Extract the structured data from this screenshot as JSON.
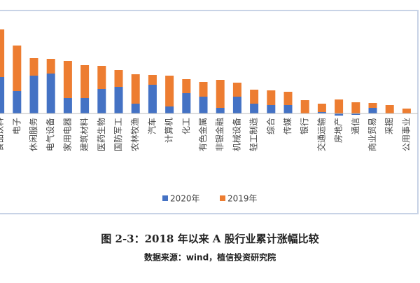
{
  "chart_data": {
    "type": "bar",
    "stacked": true,
    "categories": [
      "食品饮料",
      "电子",
      "休闲服务",
      "电气设备",
      "家用电器",
      "建筑材料",
      "医药生物",
      "国防军工",
      "农林牧渔",
      "汽车",
      "计算机",
      "化工",
      "有色金属",
      "非银金融",
      "机械设备",
      "轻工制造",
      "综合",
      "传媒",
      "银行",
      "交通运输",
      "房地产",
      "通信",
      "商业贸易",
      "采掘",
      "公用事业"
    ],
    "series": [
      {
        "name": "2020年",
        "color": "#4472c4",
        "values": [
          52,
          32,
          54,
          57,
          22,
          22,
          35,
          38,
          14,
          41,
          10,
          29,
          24,
          8,
          24,
          14,
          12,
          12,
          0,
          2,
          -3,
          -2,
          8,
          0,
          0
        ]
      },
      {
        "name": "2019年",
        "color": "#ed7d31",
        "values": [
          68,
          65,
          25,
          21,
          53,
          47,
          33,
          24,
          42,
          14,
          44,
          20,
          21,
          40,
          20,
          20,
          21,
          19,
          19,
          12,
          20,
          16,
          7,
          12,
          7
        ]
      }
    ],
    "ylim": [
      -10,
      125
    ],
    "legend": "bottom",
    "caption": "图 2-3：2018 年以来 A 股行业累计涨幅比较",
    "source": "数据来源：wind，植信投资研究院"
  }
}
